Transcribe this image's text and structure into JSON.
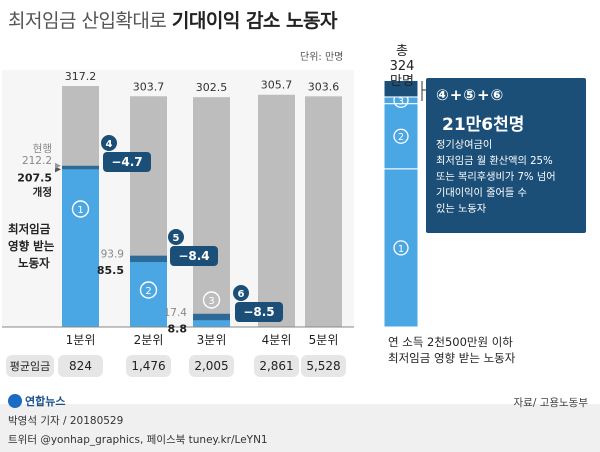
{
  "title": {
    "light": "최저임금 산입확대로",
    "bold": "기대이익 감소 노동자"
  },
  "unit": "단위: 만명",
  "chart_data": {
    "type": "bar",
    "categories": [
      "1분위",
      "2분위",
      "3분위",
      "4분위",
      "5분위"
    ],
    "totals": [
      317.2,
      303.7,
      302.5,
      305.7,
      303.6
    ],
    "totals_labels": [
      "317.2",
      "303.7",
      "302.5",
      "305.7",
      "303.6"
    ],
    "current": [
      212.2,
      93.9,
      17.4,
      0,
      0
    ],
    "current_labels": [
      "212.2",
      "93.9",
      "17.4",
      "",
      ""
    ],
    "revised": [
      207.5,
      85.5,
      8.8,
      0,
      0
    ],
    "revised_labels": [
      "207.5",
      "85.5",
      "8.8",
      "",
      ""
    ],
    "diff_labels": [
      "−4.7",
      "−8.4",
      "−8.5"
    ],
    "avg_label": "평균임금",
    "avg_wages": [
      "824",
      "1,476",
      "2,005",
      "2,861",
      "5,528"
    ],
    "ylim": [
      0,
      324
    ],
    "colors": {
      "gray": "#bdbdbd",
      "blue": "#4aa7e3",
      "navy": "#1c4f78",
      "darkblue": "#2d6a98"
    }
  },
  "labels": {
    "current": "현행",
    "revised": "개정",
    "affected": [
      "최저임금",
      "영향 받는",
      "노동자"
    ],
    "circled": [
      "①",
      "②",
      "③",
      "④",
      "⑤",
      "⑥"
    ]
  },
  "right_bar": {
    "total": [
      "총 324",
      "만명"
    ],
    "total_value": 324,
    "segments": [
      {
        "label": "①",
        "value": 207.5
      },
      {
        "label": "②",
        "value": 85.5
      },
      {
        "label": "③",
        "value": 8.8
      },
      {
        "label": "",
        "value": 21.6
      }
    ],
    "note": [
      "연 소득 2천500만원 이하",
      "최저임금 영향 받는 노동자"
    ]
  },
  "callout": {
    "head": "④+⑤+⑥",
    "amount": "21만6천명",
    "desc": [
      "정기상여금이",
      "최저임금 월 환산액의 25%",
      "또는 복리후생비가 7% 넘어",
      "기대이익이 줄어들 수",
      "있는 노동자"
    ]
  },
  "footer": {
    "logo": "연합뉴스",
    "source": "자료/ 고용노동부",
    "byline": "박영석 기자 / 20180529",
    "contact": "트위터 @yonhap_graphics, 페이스북 tuney.kr/LeYN1"
  }
}
